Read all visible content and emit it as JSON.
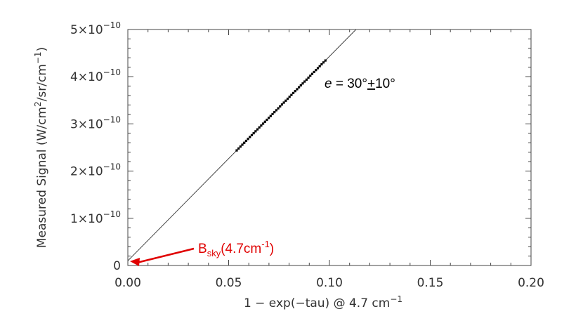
{
  "chart_data": {
    "type": "scatter",
    "xlabel": "1 − exp(−tau) @ 4.7 cm",
    "xlabel_sup": "−1",
    "ylabel": "Measured Signal (W/cm",
    "ylabel_sup": "2",
    "ylabel_tail": "/sr/cm",
    "ylabel_tail_sup": "−1",
    "ylabel_close": ")",
    "xlim": [
      0.0,
      0.2
    ],
    "ylim": [
      0,
      5e-10
    ],
    "x_ticks": [
      {
        "value": 0.0,
        "label": "0.00"
      },
      {
        "value": 0.05,
        "label": "0.05"
      },
      {
        "value": 0.1,
        "label": "0.10"
      },
      {
        "value": 0.15,
        "label": "0.15"
      },
      {
        "value": 0.2,
        "label": "0.20"
      }
    ],
    "y_ticks": [
      {
        "value": 0,
        "mant": "0",
        "exp": ""
      },
      {
        "value": 1e-10,
        "mant": "1×10",
        "exp": "−10"
      },
      {
        "value": 2e-10,
        "mant": "2×10",
        "exp": "−10"
      },
      {
        "value": 3e-10,
        "mant": "3×10",
        "exp": "−10"
      },
      {
        "value": 4e-10,
        "mant": "4×10",
        "exp": "−10"
      },
      {
        "value": 5e-10,
        "mant": "5×10",
        "exp": "−10"
      }
    ],
    "fit_line": {
      "x0": 0.0,
      "y0": 1e-11,
      "slope": 4.33e-09
    },
    "series": [
      {
        "x_start": 0.054,
        "x_end": 0.098,
        "count": 48,
        "slope": 4.33e-09,
        "intercept": 1e-11
      }
    ],
    "annotations": {
      "angle": {
        "e": "e",
        "rest": " = 30°",
        "pm": "+",
        "tail": "10°",
        "color": "#000000"
      },
      "bsky": {
        "b": "B",
        "sub": "sky",
        "rest": "(4.7cm",
        "sup": "-1",
        "close": ")",
        "color": "#e00000",
        "x": 0.0,
        "y": 0
      }
    }
  }
}
